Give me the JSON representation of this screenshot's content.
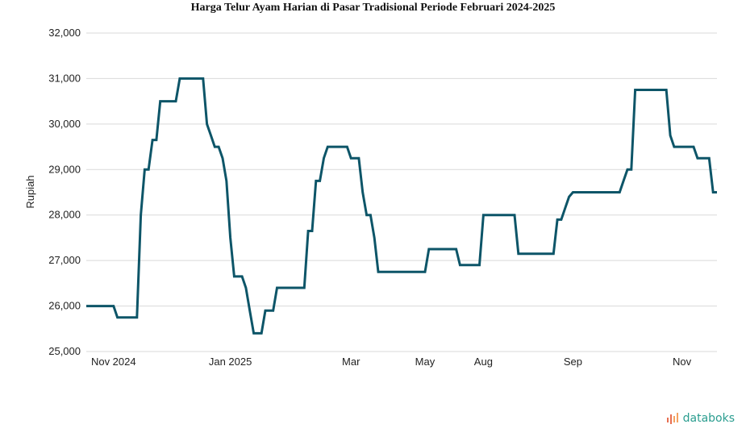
{
  "chart_data": {
    "type": "line",
    "title": "Harga Telur Ayam Harian di Pasar Tradisional Periode Februari 2024-2025",
    "xlabel": "",
    "ylabel": "Rupiah",
    "ylim": [
      25000,
      32000
    ],
    "yticks": [
      25000,
      26000,
      27000,
      28000,
      29000,
      30000,
      31000,
      32000
    ],
    "ytick_labels": [
      "25,000",
      "26,000",
      "27,000",
      "28,000",
      "29,000",
      "30,000",
      "31,000",
      "32,000"
    ],
    "xticks": [
      {
        "label": "Nov 2024",
        "index": 7
      },
      {
        "label": "Jan 2025",
        "index": 37
      },
      {
        "label": "Mar",
        "index": 68
      },
      {
        "label": "May",
        "index": 87
      },
      {
        "label": "Aug",
        "index": 102
      },
      {
        "label": "Sep",
        "index": 125
      },
      {
        "label": "Nov",
        "index": 153
      }
    ],
    "grid": true,
    "line_color": "#0d5568",
    "series": [
      {
        "values": [
          26000,
          26000,
          26000,
          26000,
          26000,
          26000,
          26000,
          26000,
          25750,
          25750,
          25750,
          25750,
          25750,
          25750,
          28000,
          29000,
          29000,
          29650,
          29650,
          30500,
          30500,
          30500,
          30500,
          30500,
          31000,
          31000,
          31000,
          31000,
          31000,
          31000,
          31000,
          30000,
          29750,
          29500,
          29500,
          29250,
          28750,
          27500,
          26650,
          26650,
          26650,
          26400,
          25900,
          25400,
          25400,
          25400,
          25900,
          25900,
          25900,
          26400,
          26400,
          26400,
          26400,
          26400,
          26400,
          26400,
          26400,
          27650,
          27650,
          28750,
          28750,
          29250,
          29500,
          29500,
          29500,
          29500,
          29500,
          29500,
          29250,
          29250,
          29250,
          28500,
          28000,
          28000,
          27500,
          26750,
          26750,
          26750,
          26750,
          26750,
          26750,
          26750,
          26750,
          26750,
          26750,
          26750,
          26750,
          26750,
          27250,
          27250,
          27250,
          27250,
          27250,
          27250,
          27250,
          27250,
          26900,
          26900,
          26900,
          26900,
          26900,
          26900,
          28000,
          28000,
          28000,
          28000,
          28000,
          28000,
          28000,
          28000,
          28000,
          27150,
          27150,
          27150,
          27150,
          27150,
          27150,
          27150,
          27150,
          27150,
          27150,
          27900,
          27900,
          28150,
          28400,
          28500,
          28500,
          28500,
          28500,
          28500,
          28500,
          28500,
          28500,
          28500,
          28500,
          28500,
          28500,
          28500,
          28750,
          29000,
          29000,
          30750,
          30750,
          30750,
          30750,
          30750,
          30750,
          30750,
          30750,
          30750,
          29750,
          29500,
          29500,
          29500,
          29500,
          29500,
          29500,
          29250,
          29250,
          29250,
          29250,
          28500,
          28500
        ]
      }
    ]
  },
  "branding": {
    "logo_text": "databoks"
  }
}
